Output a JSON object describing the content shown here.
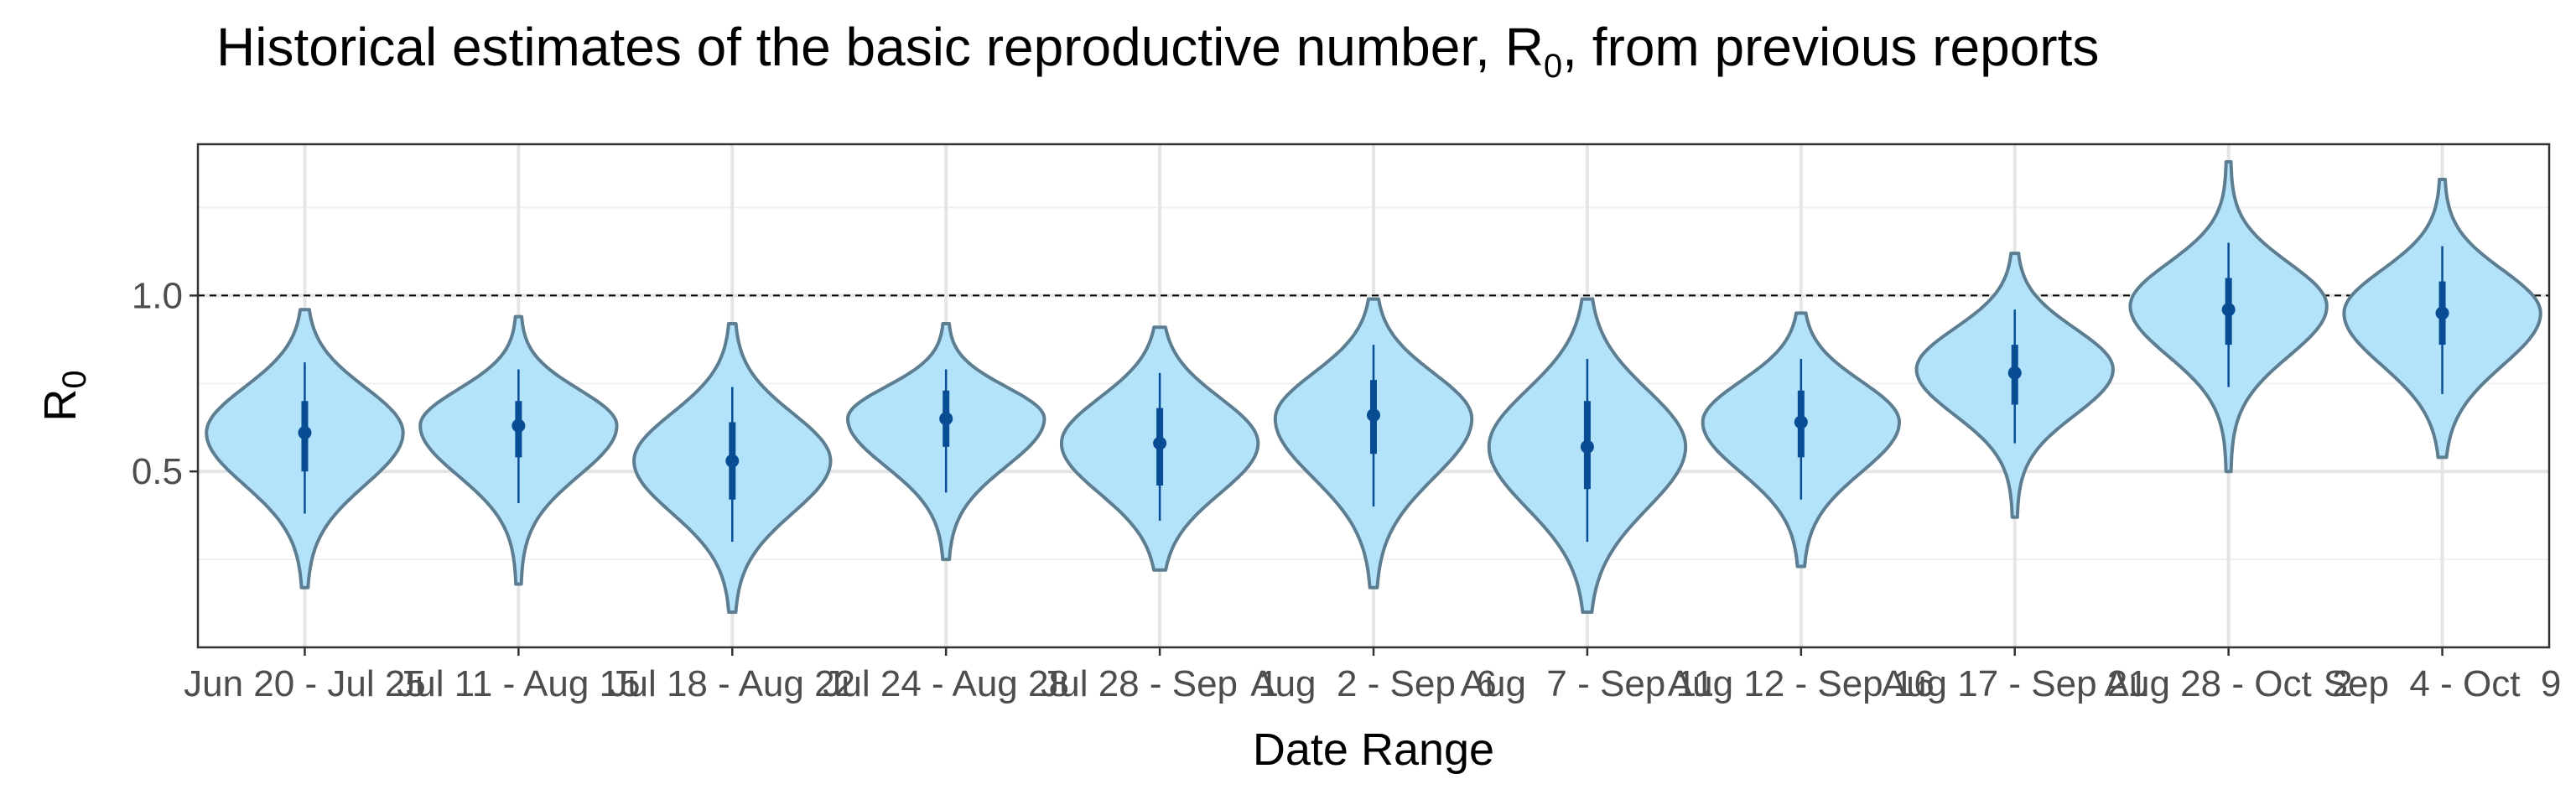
{
  "chart_data": {
    "type": "violin",
    "title_parts": [
      "Historical estimates of the basic reproductive number, R",
      "0",
      ", from previous reports"
    ],
    "xlabel": "Date Range",
    "ylabel_parts": [
      "R",
      "0"
    ],
    "ylim": [
      0.0,
      1.43
    ],
    "yticks": [
      0.5,
      1.0
    ],
    "ytick_labels": [
      "0.5",
      "1.0"
    ],
    "reference_line": 1.0,
    "grid": true,
    "colors": {
      "fill": "#b3e2fb",
      "outline": "#5d7d91",
      "point": "#084d94"
    },
    "categories": [
      "Jun 20 - Jul 25",
      "Jul 11 - Aug 15",
      "Jul 18 - Aug 22",
      "Jul 24 - Aug 28",
      "Jul 28 - Sep  1",
      "Aug  2 - Sep  6",
      "Aug  7 - Sep 11",
      "Aug 12 - Sep 16",
      "Aug 17 - Sep 21",
      "Aug 28 - Oct  2",
      "Sep  4 - Oct  9"
    ],
    "series": [
      {
        "median": 0.61,
        "q1": 0.5,
        "q3": 0.7,
        "lo": 0.38,
        "hi": 0.81,
        "min": 0.17,
        "max": 0.96,
        "mode": 0.61
      },
      {
        "median": 0.63,
        "q1": 0.54,
        "q3": 0.7,
        "lo": 0.41,
        "hi": 0.79,
        "min": 0.18,
        "max": 0.94,
        "mode": 0.63
      },
      {
        "median": 0.53,
        "q1": 0.42,
        "q3": 0.64,
        "lo": 0.3,
        "hi": 0.74,
        "min": 0.1,
        "max": 0.92,
        "mode": 0.53
      },
      {
        "median": 0.65,
        "q1": 0.57,
        "q3": 0.73,
        "lo": 0.44,
        "hi": 0.79,
        "min": 0.25,
        "max": 0.92,
        "mode": 0.65
      },
      {
        "median": 0.58,
        "q1": 0.46,
        "q3": 0.68,
        "lo": 0.36,
        "hi": 0.78,
        "min": 0.22,
        "max": 0.91,
        "mode": 0.58
      },
      {
        "median": 0.66,
        "q1": 0.55,
        "q3": 0.76,
        "lo": 0.4,
        "hi": 0.86,
        "min": 0.17,
        "max": 0.99,
        "mode": 0.65
      },
      {
        "median": 0.57,
        "q1": 0.45,
        "q3": 0.7,
        "lo": 0.3,
        "hi": 0.82,
        "min": 0.1,
        "max": 0.99,
        "mode": 0.57
      },
      {
        "median": 0.64,
        "q1": 0.54,
        "q3": 0.73,
        "lo": 0.42,
        "hi": 0.82,
        "min": 0.23,
        "max": 0.95,
        "mode": 0.64
      },
      {
        "median": 0.78,
        "q1": 0.69,
        "q3": 0.86,
        "lo": 0.58,
        "hi": 0.96,
        "min": 0.37,
        "max": 1.12,
        "mode": 0.79
      },
      {
        "median": 0.96,
        "q1": 0.86,
        "q3": 1.05,
        "lo": 0.74,
        "hi": 1.15,
        "min": 0.5,
        "max": 1.38,
        "mode": 0.97
      },
      {
        "median": 0.95,
        "q1": 0.86,
        "q3": 1.04,
        "lo": 0.72,
        "hi": 1.14,
        "min": 0.54,
        "max": 1.33,
        "mode": 0.95
      }
    ]
  }
}
